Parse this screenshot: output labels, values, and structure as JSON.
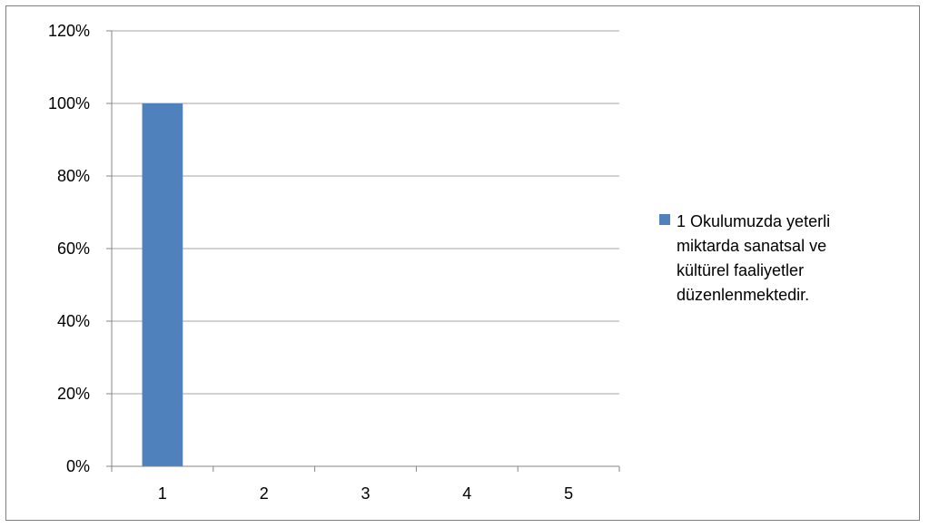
{
  "chart_data": {
    "type": "bar",
    "categories": [
      "1",
      "2",
      "3",
      "4",
      "5"
    ],
    "series": [
      {
        "name": "1 Okulumuzda yeterli miktarda sanatsal ve kültürel faaliyetler düzenlenmektedir.",
        "legend_lines": [
          "1 Okulumuzda yeterli",
          "miktarda sanatsal ve",
          "kültürel faaliyetler",
          "düzenlenmektedir."
        ],
        "values": [
          100,
          0,
          0,
          0,
          0
        ],
        "color": "#4f81bd"
      }
    ],
    "ylim": [
      0,
      120
    ],
    "yticks": [
      "0%",
      "20%",
      "40%",
      "60%",
      "80%",
      "100%",
      "120%"
    ],
    "title": "",
    "xlabel": "",
    "ylabel": "",
    "grid": true,
    "legend_position": "right"
  }
}
